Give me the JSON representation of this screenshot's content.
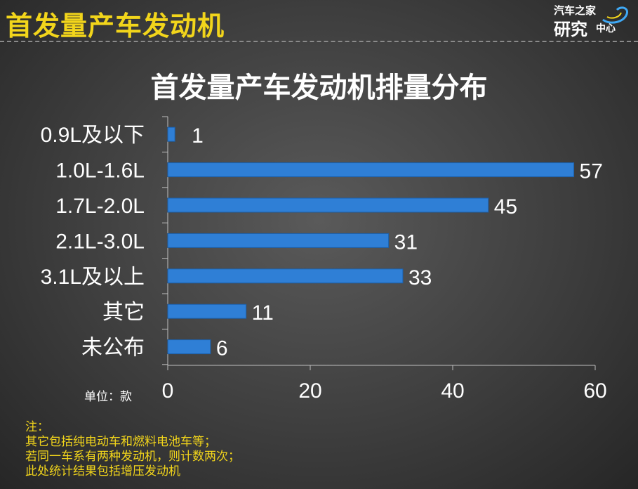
{
  "header": {
    "title": "首发量产车发动机"
  },
  "logo": {
    "line1": "汽车之家",
    "line2": "研究",
    "line3": "中心"
  },
  "chart_data": {
    "type": "bar",
    "orientation": "horizontal",
    "title": "首发量产车发动机排量分布",
    "categories": [
      "0.9L及以下",
      "1.0L-1.6L",
      "1.7L-2.0L",
      "2.1L-3.0L",
      "3.1L及以上",
      "其它",
      "未公布"
    ],
    "values": [
      1,
      57,
      45,
      31,
      33,
      11,
      6
    ],
    "xlim": [
      0,
      60
    ],
    "xticks": [
      0,
      20,
      40,
      60
    ],
    "unit_label": "单位：款",
    "bar_color": "#2f7fd6",
    "grid": false
  },
  "notes": {
    "heading": "注：",
    "lines": [
      "其它包括纯电动车和燃料电池车等；",
      "若同一车系有两种发动机，则计数两次；",
      "此处统计结果包括增压发动机"
    ]
  },
  "colors": {
    "accent": "#f2d51b",
    "bar": "#2f7fd6",
    "text": "#ffffff"
  }
}
